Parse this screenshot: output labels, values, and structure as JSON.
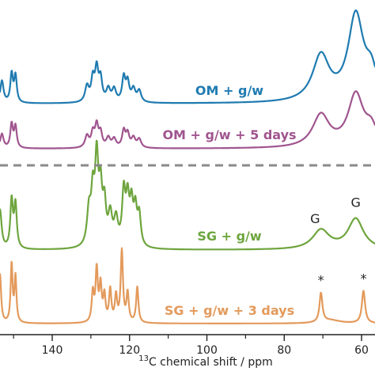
{
  "chart_data": {
    "type": "line",
    "title": "",
    "xlabel_sup": "13",
    "xlabel_main": "C chemical shift / ppm",
    "x_reversed": true,
    "xlim": [
      155,
      57
    ],
    "x_ticks": [
      140,
      120,
      100,
      80,
      60
    ],
    "divider": "dashed-grey-line-between-OM-and-SG-groups",
    "colors": {
      "OM + g/w": "#1f7bb0",
      "OM + g/w + 5 days": "#a0558f",
      "SG + g/w": "#6ea53e",
      "SG + g/w + 3 days": "#e39a5c"
    },
    "series": [
      {
        "name": "OM + g/w",
        "peaks": [
          {
            "x": 153,
            "h": 0.35,
            "w": 0.5
          },
          {
            "x": 150.5,
            "h": 0.45,
            "w": 0.4
          },
          {
            "x": 149.5,
            "h": 0.42,
            "w": 0.4
          },
          {
            "x": 131,
            "h": 0.25,
            "w": 0.6
          },
          {
            "x": 129.5,
            "h": 0.35,
            "w": 0.5
          },
          {
            "x": 128.5,
            "h": 0.5,
            "w": 0.5
          },
          {
            "x": 127.5,
            "h": 0.35,
            "w": 0.5
          },
          {
            "x": 125.5,
            "h": 0.2,
            "w": 0.6
          },
          {
            "x": 124,
            "h": 0.2,
            "w": 0.6
          },
          {
            "x": 121.5,
            "h": 0.38,
            "w": 0.5
          },
          {
            "x": 120.5,
            "h": 0.3,
            "w": 0.5
          },
          {
            "x": 119,
            "h": 0.2,
            "w": 0.6
          },
          {
            "x": 117.5,
            "h": 0.18,
            "w": 0.6
          },
          {
            "x": 70.5,
            "h": 0.72,
            "w": 2.6
          },
          {
            "x": 61.5,
            "h": 1.35,
            "w": 2.4
          },
          {
            "x": 57.5,
            "h": 0.4,
            "w": 1.8
          }
        ]
      },
      {
        "name": "OM + g/w + 5 days",
        "peaks": [
          {
            "x": 153,
            "h": 0.3,
            "w": 0.5
          },
          {
            "x": 150.5,
            "h": 0.5,
            "w": 0.4
          },
          {
            "x": 149.5,
            "h": 0.45,
            "w": 0.4
          },
          {
            "x": 131,
            "h": 0.25,
            "w": 0.6
          },
          {
            "x": 129.5,
            "h": 0.3,
            "w": 0.5
          },
          {
            "x": 128.5,
            "h": 0.45,
            "w": 0.5
          },
          {
            "x": 127.5,
            "h": 0.3,
            "w": 0.5
          },
          {
            "x": 125.5,
            "h": 0.2,
            "w": 0.6
          },
          {
            "x": 124,
            "h": 0.18,
            "w": 0.6
          },
          {
            "x": 121.5,
            "h": 0.35,
            "w": 0.5
          },
          {
            "x": 120.5,
            "h": 0.28,
            "w": 0.5
          },
          {
            "x": 119,
            "h": 0.2,
            "w": 0.6
          },
          {
            "x": 117.5,
            "h": 0.18,
            "w": 0.6
          },
          {
            "x": 70.5,
            "h": 0.68,
            "w": 2.6
          },
          {
            "x": 61.5,
            "h": 1.1,
            "w": 2.4
          },
          {
            "x": 57.5,
            "h": 0.35,
            "w": 1.8
          }
        ]
      },
      {
        "name": "SG + g/w",
        "peaks": [
          {
            "x": 153.5,
            "h": 0.45,
            "w": 0.5
          },
          {
            "x": 150.5,
            "h": 0.55,
            "w": 0.4
          },
          {
            "x": 149.5,
            "h": 0.5,
            "w": 0.4
          },
          {
            "x": 130.5,
            "h": 0.4,
            "w": 0.6
          },
          {
            "x": 129.5,
            "h": 0.55,
            "w": 0.5
          },
          {
            "x": 128.5,
            "h": 0.95,
            "w": 0.5
          },
          {
            "x": 127.5,
            "h": 0.6,
            "w": 0.5
          },
          {
            "x": 126.5,
            "h": 0.45,
            "w": 0.5
          },
          {
            "x": 125,
            "h": 0.35,
            "w": 0.6
          },
          {
            "x": 123.5,
            "h": 0.3,
            "w": 0.6
          },
          {
            "x": 121.5,
            "h": 0.6,
            "w": 0.5
          },
          {
            "x": 120.5,
            "h": 0.5,
            "w": 0.5
          },
          {
            "x": 119.5,
            "h": 0.45,
            "w": 0.5
          },
          {
            "x": 118.5,
            "h": 0.4,
            "w": 0.5
          },
          {
            "x": 117.5,
            "h": 0.35,
            "w": 0.5
          },
          {
            "x": 70.5,
            "h": 0.22,
            "w": 2.6
          },
          {
            "x": 61.5,
            "h": 0.35,
            "w": 2.4
          }
        ]
      },
      {
        "name": "SG + g/w + 3 days",
        "peaks": [
          {
            "x": 153.5,
            "h": 0.75,
            "w": 0.35
          },
          {
            "x": 150.5,
            "h": 0.9,
            "w": 0.3
          },
          {
            "x": 149.5,
            "h": 0.7,
            "w": 0.3
          },
          {
            "x": 129.5,
            "h": 0.45,
            "w": 0.35
          },
          {
            "x": 128.5,
            "h": 0.8,
            "w": 0.35
          },
          {
            "x": 127.5,
            "h": 0.55,
            "w": 0.35
          },
          {
            "x": 126.5,
            "h": 0.4,
            "w": 0.35
          },
          {
            "x": 125,
            "h": 0.5,
            "w": 0.35
          },
          {
            "x": 123.5,
            "h": 0.4,
            "w": 0.35
          },
          {
            "x": 122,
            "h": 1.1,
            "w": 0.35
          },
          {
            "x": 120.5,
            "h": 0.45,
            "w": 0.35
          },
          {
            "x": 118,
            "h": 0.55,
            "w": 0.35
          },
          {
            "x": 70.5,
            "h": 0.45,
            "w": 0.45
          },
          {
            "x": 68,
            "h": 0.05,
            "w": 3
          },
          {
            "x": 59.5,
            "h": 0.5,
            "w": 0.5
          }
        ]
      }
    ],
    "annotations": [
      {
        "text": "G",
        "series": "SG + g/w",
        "x": 72
      },
      {
        "text": "G",
        "series": "SG + g/w",
        "x": 61.5
      },
      {
        "text": "*",
        "series": "SG + g/w + 3 days",
        "x": 70.5
      },
      {
        "text": "*",
        "series": "SG + g/w + 3 days",
        "x": 59.5
      }
    ]
  }
}
